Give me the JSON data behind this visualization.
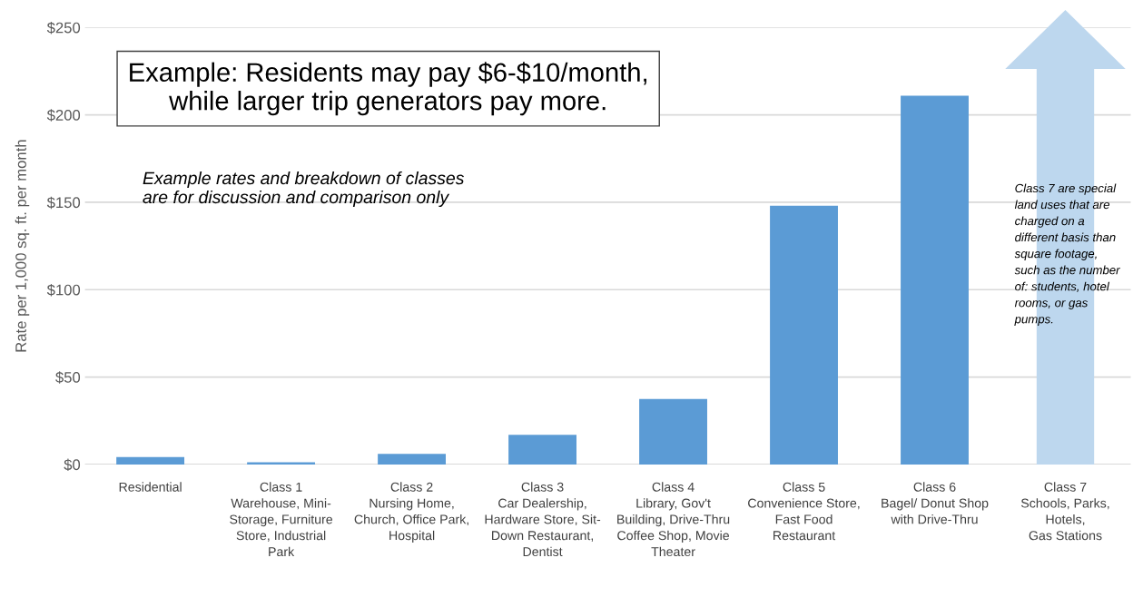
{
  "chart_data": {
    "type": "bar",
    "ylabel": "Rate per 1,000 sq. ft. per month",
    "categories": [
      "Residential",
      "Class 1\nWarehouse, Mini-\nStorage, Furniture\nStore, Industrial\nPark",
      "Class 2\nNursing Home,\nChurch, Office Park,\nHospital",
      "Class 3\nCar Dealership,\nHardware Store, Sit-\nDown Restaurant,\nDentist",
      "Class 4\nLibrary, Gov't\nBuilding, Drive-Thru\nCoffee Shop, Movie\nTheater",
      "Class 5\nConvenience Store,\nFast Food\nRestaurant",
      "Class 6\nBagel/ Donut Shop\nwith Drive-Thru",
      "Class 7\nSchools, Parks,\nHotels,\nGas Stations"
    ],
    "values": [
      4.3,
      1.3,
      6,
      17,
      37.5,
      148,
      211,
      null
    ],
    "color": "#5b9bd5",
    "ylim": [
      0,
      250
    ],
    "yticks": [
      {
        "value": 0,
        "label": "$0"
      },
      {
        "value": 50,
        "label": "$50"
      },
      {
        "value": 100,
        "label": "$100"
      },
      {
        "value": 150,
        "label": "$150"
      },
      {
        "value": 200,
        "label": "$200"
      },
      {
        "value": 250,
        "label": "$250"
      }
    ],
    "grid": "y",
    "annotations": [
      "Example: Residents may pay $6-$10/month,\nwhile larger trip generators pay more.",
      "Example rates and breakdown of classes\nare for discussion and comparison only",
      "Class 7 are special\nland uses that are\ncharged on a\ndifferent basis than\nsquare footage,\nsuch as the number\nof: students, hotel\nrooms, or gas\npumps."
    ]
  }
}
